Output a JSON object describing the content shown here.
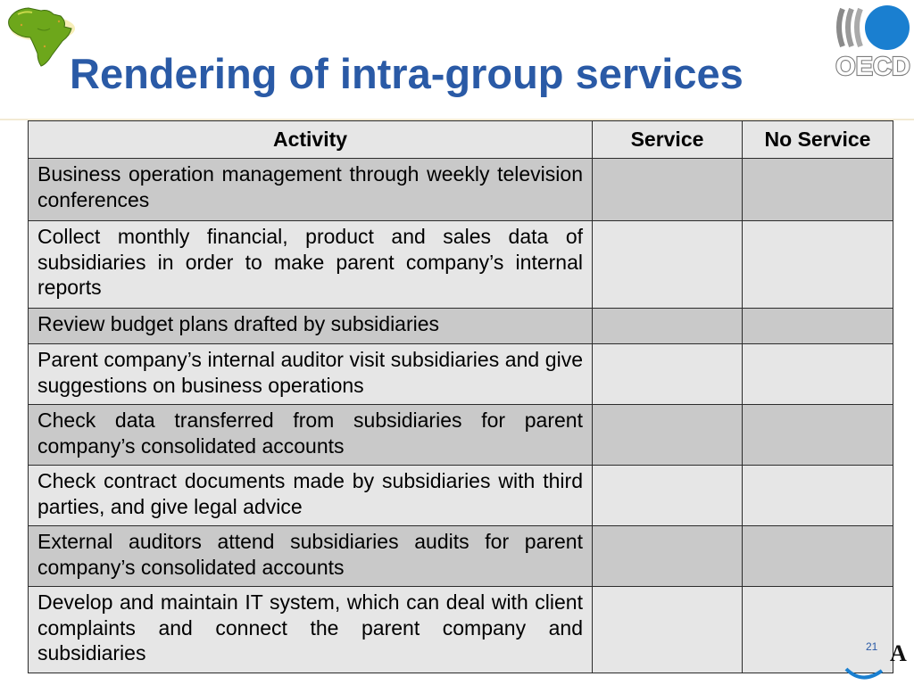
{
  "header": {
    "title": "Rendering of intra-group services"
  },
  "logos": {
    "left": "africa-map-logo",
    "right": "oecd-logo",
    "right_text": "OECD",
    "corner_letter": "A"
  },
  "colors": {
    "title": "#2a5aa6",
    "row_shaded": "#c9c9c9",
    "row_light": "#e6e6e6",
    "oecd_blue": "#1a7fd0"
  },
  "table": {
    "headers": [
      "Activity",
      "Service",
      "No Service"
    ],
    "rows": [
      {
        "activity": "Business operation management through weekly television conferences",
        "service": "",
        "no_service": ""
      },
      {
        "activity": "Collect monthly financial, product and sales data of subsidiaries in order to make parent company’s internal reports",
        "service": "",
        "no_service": ""
      },
      {
        "activity": "Review budget plans drafted by subsidiaries",
        "service": "",
        "no_service": ""
      },
      {
        "activity": "Parent company’s internal auditor visit subsidiaries and give suggestions on business operations",
        "service": "",
        "no_service": ""
      },
      {
        "activity": "Check data transferred from subsidiaries for parent company’s consolidated accounts",
        "service": "",
        "no_service": ""
      },
      {
        "activity": "Check contract documents made by subsidiaries with third parties, and give legal advice",
        "service": "",
        "no_service": ""
      },
      {
        "activity": "External auditors attend subsidiaries audits for parent company’s consolidated accounts",
        "service": "",
        "no_service": ""
      },
      {
        "activity": "Develop and maintain IT system, which can deal with client complaints and connect the parent company and subsidiaries",
        "service": "",
        "no_service": ""
      }
    ]
  },
  "footer": {
    "page_number": "21"
  }
}
